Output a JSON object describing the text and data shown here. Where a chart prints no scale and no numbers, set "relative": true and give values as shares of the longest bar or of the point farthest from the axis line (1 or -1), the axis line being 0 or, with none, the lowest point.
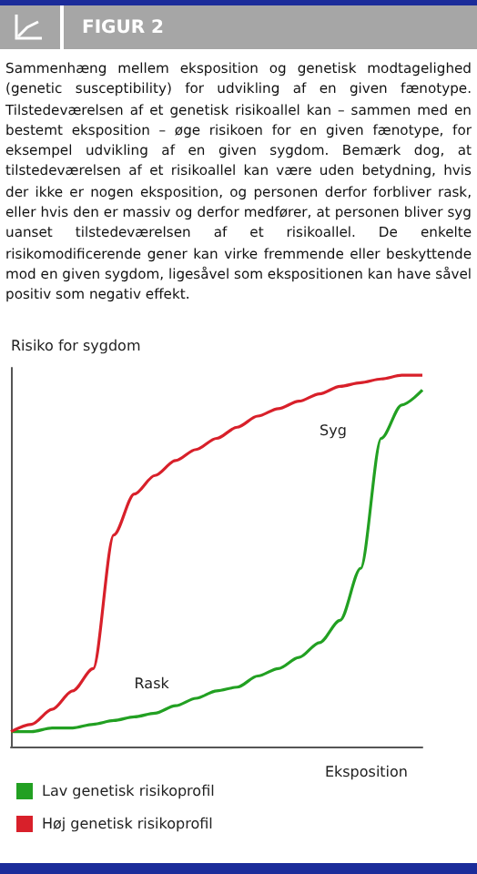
{
  "chart_data": {
    "type": "line",
    "relative": true,
    "title": "FIGUR 2",
    "subtitle": "Sammenhæng mellem eksposition og genetisk modtagelighed (genetic susceptibility) for udvikling af en given fænotype. Tilstedeværelsen af et genetisk risikoallel kan – sammen med en bestemt eksposition – øge risikoen for en given fænotype, for eksempel udvikling af en given sygdom. Bemærk dog, at tilstedeværelsen af et risikoallel kan være uden betydning, hvis der ikke er nogen eksposition, og personen derfor forbliver rask, eller hvis den er massiv og derfor medfører, at personen bliver syg uanset tilstedeværelsen af et risikoallel. De enkelte risikomodificerende gener kan virke fremmende eller beskyttende mod en given sygdom, ligesåvel som ekspositionen kan have såvel positiv som negativ effekt.",
    "xlabel": "Eksposition",
    "ylabel": "Risiko for sygdom",
    "annotations": [
      "Syg",
      "Rask"
    ],
    "categories": [
      null,
      null,
      null,
      null,
      null,
      null,
      null,
      null,
      null,
      null,
      null,
      null,
      null,
      null,
      null,
      null,
      null,
      null,
      null,
      null,
      null
    ],
    "series": [
      {
        "name": "Lav genetisk risikoprofil",
        "color": "#22a022",
        "values": [
          0.04,
          0.04,
          0.05,
          0.05,
          0.06,
          0.07,
          0.08,
          0.09,
          0.11,
          0.13,
          0.15,
          0.16,
          0.19,
          0.21,
          0.24,
          0.28,
          0.34,
          0.48,
          0.83,
          0.92,
          0.96
        ]
      },
      {
        "name": "Høj genetisk risikoprofil",
        "color": "#d8202a",
        "values": [
          0.04,
          0.06,
          0.1,
          0.15,
          0.21,
          0.57,
          0.68,
          0.73,
          0.77,
          0.8,
          0.83,
          0.86,
          0.89,
          0.91,
          0.93,
          0.95,
          0.97,
          0.98,
          0.99,
          1.0,
          1.0
        ]
      }
    ],
    "legend": "bottom left",
    "grid": false,
    "marker": "none",
    "line_style": "solid"
  }
}
